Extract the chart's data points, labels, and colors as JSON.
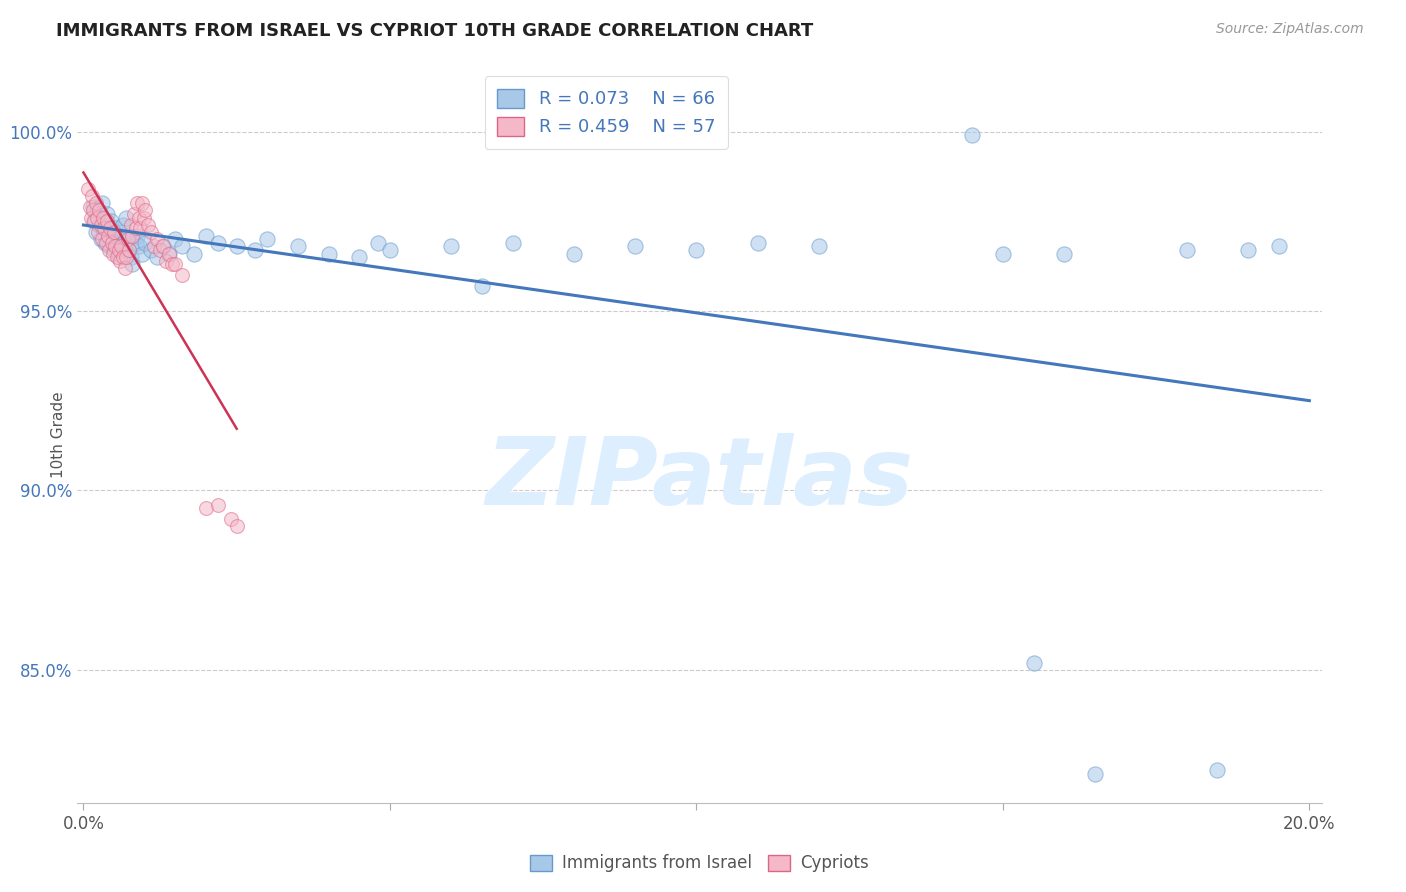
{
  "title": "IMMIGRANTS FROM ISRAEL VS CYPRIOT 10TH GRADE CORRELATION CHART",
  "source": "Source: ZipAtlas.com",
  "xlabel_label": "Immigrants from Israel",
  "ylabel_label": "10th Grade",
  "xlim": [
    -0.001,
    0.202
  ],
  "ylim": [
    0.813,
    1.018
  ],
  "xtick_positions": [
    0.0,
    0.05,
    0.1,
    0.15,
    0.2
  ],
  "xtick_labels": [
    "0.0%",
    "",
    "",
    "",
    "20.0%"
  ],
  "ytick_positions": [
    0.85,
    0.9,
    0.95,
    1.0
  ],
  "ytick_labels": [
    "85.0%",
    "90.0%",
    "95.0%",
    "100.0%"
  ],
  "blue_R": 0.073,
  "blue_N": 66,
  "pink_R": 0.459,
  "pink_N": 57,
  "blue_color": "#a8c8e8",
  "pink_color": "#f4b8c8",
  "blue_edge_color": "#6699cc",
  "pink_edge_color": "#dd6688",
  "blue_line_color": "#4477bb",
  "pink_line_color": "#cc3355",
  "axis_label_color": "#555555",
  "right_tick_color": "#4477bb",
  "watermark_text": "ZIPatlas",
  "watermark_color": "#ddeeff",
  "legend_text_color_R": "#4477bb",
  "legend_text_color_N": "#333333",
  "blue_points": [
    [
      0.0015,
      0.979
    ],
    [
      0.0018,
      0.975
    ],
    [
      0.002,
      0.972
    ],
    [
      0.0022,
      0.978
    ],
    [
      0.0025,
      0.974
    ],
    [
      0.0028,
      0.97
    ],
    [
      0.003,
      0.98
    ],
    [
      0.0032,
      0.973
    ],
    [
      0.0035,
      0.969
    ],
    [
      0.0038,
      0.977
    ],
    [
      0.004,
      0.973
    ],
    [
      0.0042,
      0.968
    ],
    [
      0.0045,
      0.975
    ],
    [
      0.0048,
      0.971
    ],
    [
      0.005,
      0.967
    ],
    [
      0.0052,
      0.973
    ],
    [
      0.0055,
      0.969
    ],
    [
      0.0058,
      0.965
    ],
    [
      0.006,
      0.972
    ],
    [
      0.0062,
      0.968
    ],
    [
      0.0065,
      0.974
    ],
    [
      0.0068,
      0.97
    ],
    [
      0.007,
      0.976
    ],
    [
      0.0072,
      0.971
    ],
    [
      0.0075,
      0.967
    ],
    [
      0.0078,
      0.965
    ],
    [
      0.008,
      0.963
    ],
    [
      0.0085,
      0.969
    ],
    [
      0.0088,
      0.971
    ],
    [
      0.009,
      0.968
    ],
    [
      0.0095,
      0.966
    ],
    [
      0.01,
      0.969
    ],
    [
      0.011,
      0.967
    ],
    [
      0.012,
      0.965
    ],
    [
      0.013,
      0.968
    ],
    [
      0.014,
      0.966
    ],
    [
      0.015,
      0.97
    ],
    [
      0.016,
      0.968
    ],
    [
      0.018,
      0.966
    ],
    [
      0.02,
      0.971
    ],
    [
      0.022,
      0.969
    ],
    [
      0.025,
      0.968
    ],
    [
      0.028,
      0.967
    ],
    [
      0.03,
      0.97
    ],
    [
      0.035,
      0.968
    ],
    [
      0.04,
      0.966
    ],
    [
      0.045,
      0.965
    ],
    [
      0.048,
      0.969
    ],
    [
      0.05,
      0.967
    ],
    [
      0.06,
      0.968
    ],
    [
      0.065,
      0.957
    ],
    [
      0.07,
      0.969
    ],
    [
      0.08,
      0.966
    ],
    [
      0.09,
      0.968
    ],
    [
      0.1,
      0.967
    ],
    [
      0.11,
      0.969
    ],
    [
      0.12,
      0.968
    ],
    [
      0.145,
      0.999
    ],
    [
      0.15,
      0.966
    ],
    [
      0.155,
      0.852
    ],
    [
      0.16,
      0.966
    ],
    [
      0.165,
      0.821
    ],
    [
      0.18,
      0.967
    ],
    [
      0.185,
      0.822
    ],
    [
      0.19,
      0.967
    ],
    [
      0.195,
      0.968
    ]
  ],
  "pink_points": [
    [
      0.0008,
      0.984
    ],
    [
      0.001,
      0.979
    ],
    [
      0.0012,
      0.976
    ],
    [
      0.0014,
      0.982
    ],
    [
      0.0016,
      0.978
    ],
    [
      0.0018,
      0.975
    ],
    [
      0.002,
      0.98
    ],
    [
      0.0022,
      0.976
    ],
    [
      0.0024,
      0.972
    ],
    [
      0.0026,
      0.978
    ],
    [
      0.0028,
      0.974
    ],
    [
      0.003,
      0.97
    ],
    [
      0.0032,
      0.976
    ],
    [
      0.0034,
      0.973
    ],
    [
      0.0036,
      0.969
    ],
    [
      0.0038,
      0.975
    ],
    [
      0.004,
      0.971
    ],
    [
      0.0042,
      0.967
    ],
    [
      0.0044,
      0.973
    ],
    [
      0.0046,
      0.969
    ],
    [
      0.0048,
      0.966
    ],
    [
      0.005,
      0.972
    ],
    [
      0.0052,
      0.968
    ],
    [
      0.0055,
      0.965
    ],
    [
      0.0058,
      0.967
    ],
    [
      0.006,
      0.964
    ],
    [
      0.0062,
      0.968
    ],
    [
      0.0065,
      0.965
    ],
    [
      0.0068,
      0.962
    ],
    [
      0.007,
      0.965
    ],
    [
      0.0072,
      0.97
    ],
    [
      0.0075,
      0.967
    ],
    [
      0.0078,
      0.974
    ],
    [
      0.008,
      0.971
    ],
    [
      0.0082,
      0.977
    ],
    [
      0.0085,
      0.973
    ],
    [
      0.0088,
      0.98
    ],
    [
      0.009,
      0.976
    ],
    [
      0.0092,
      0.973
    ],
    [
      0.0095,
      0.98
    ],
    [
      0.0098,
      0.976
    ],
    [
      0.01,
      0.978
    ],
    [
      0.0105,
      0.974
    ],
    [
      0.011,
      0.972
    ],
    [
      0.0115,
      0.968
    ],
    [
      0.012,
      0.97
    ],
    [
      0.0125,
      0.967
    ],
    [
      0.013,
      0.968
    ],
    [
      0.0135,
      0.964
    ],
    [
      0.014,
      0.966
    ],
    [
      0.0145,
      0.963
    ],
    [
      0.015,
      0.963
    ],
    [
      0.016,
      0.96
    ],
    [
      0.02,
      0.895
    ],
    [
      0.022,
      0.896
    ],
    [
      0.024,
      0.892
    ],
    [
      0.025,
      0.89
    ]
  ],
  "dot_size_blue": 120,
  "dot_size_pink": 100,
  "dot_alpha": 0.55
}
